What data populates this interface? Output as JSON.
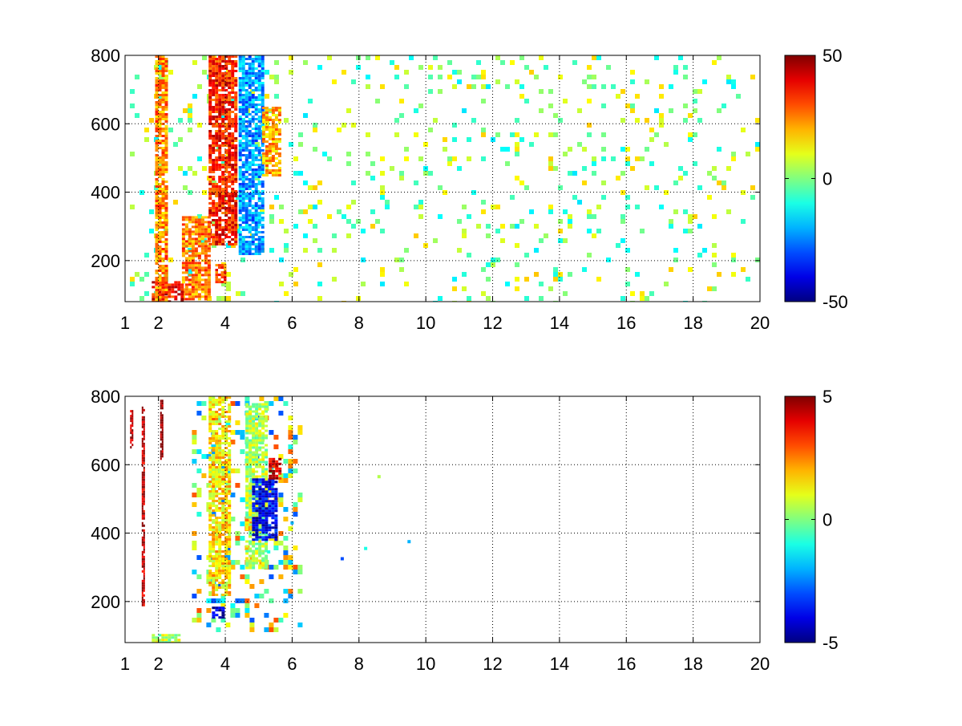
{
  "chart_data": [
    {
      "type": "heatmap",
      "title": "",
      "xlabel": "",
      "ylabel": "",
      "xlim": [
        1,
        20
      ],
      "ylim": [
        80,
        800
      ],
      "xticks": [
        1,
        2,
        4,
        6,
        8,
        10,
        12,
        14,
        16,
        18,
        20
      ],
      "yticks": [
        200,
        400,
        600,
        800
      ],
      "xtick_labels": [
        "1",
        "2",
        "4",
        "6",
        "8",
        "10",
        "12",
        "14",
        "16",
        "18",
        "20"
      ],
      "ytick_labels": [
        "200",
        "400",
        "600",
        "800"
      ],
      "grid": true,
      "colormap": "jet",
      "clim": [
        -50,
        50
      ],
      "colorbar_ticks": [
        50,
        0,
        -50
      ],
      "colorbar_labels": [
        "50",
        "0",
        "-50"
      ],
      "features": [
        {
          "x_range": [
            3.5,
            4.3
          ],
          "y_range": [
            250,
            800
          ],
          "value": 35
        },
        {
          "x_range": [
            2.7,
            3.5
          ],
          "y_range": [
            90,
            330
          ],
          "value": 25
        },
        {
          "x_range": [
            1.8,
            2.7
          ],
          "y_range": [
            80,
            140
          ],
          "value": 38
        },
        {
          "x_range": [
            4.4,
            5.1
          ],
          "y_range": [
            220,
            800
          ],
          "value": -22
        },
        {
          "x_range": [
            5.1,
            5.6
          ],
          "y_range": [
            450,
            650
          ],
          "value": 20
        },
        {
          "x_range": [
            1.9,
            2.2
          ],
          "y_range": [
            80,
            800
          ],
          "value": 25
        },
        {
          "x_range": [
            3.7,
            3.95
          ],
          "y_range": [
            140,
            190
          ],
          "value": 30
        }
      ],
      "background_noise": {
        "x_range": [
          1,
          20
        ],
        "y_range": [
          80,
          800
        ],
        "value_range": [
          -15,
          18
        ],
        "density": 0.09
      }
    },
    {
      "type": "heatmap",
      "title": "",
      "xlabel": "",
      "ylabel": "",
      "xlim": [
        1,
        20
      ],
      "ylim": [
        80,
        800
      ],
      "xticks": [
        1,
        2,
        4,
        6,
        8,
        10,
        12,
        14,
        16,
        18,
        20
      ],
      "yticks": [
        200,
        400,
        600,
        800
      ],
      "xtick_labels": [
        "1",
        "2",
        "4",
        "6",
        "8",
        "10",
        "12",
        "14",
        "16",
        "18",
        "20"
      ],
      "ytick_labels": [
        "200",
        "400",
        "600",
        "800"
      ],
      "grid": true,
      "colormap": "jet",
      "clim": [
        -5,
        5
      ],
      "colorbar_ticks": [
        5,
        0,
        -5
      ],
      "colorbar_labels": [
        "5",
        "0",
        "-5"
      ],
      "features": [
        {
          "x_range": [
            3.5,
            4.1
          ],
          "y_range": [
            220,
            800
          ],
          "value": 1.5
        },
        {
          "x_range": [
            4.6,
            5.2
          ],
          "y_range": [
            300,
            780
          ],
          "value": 0.5
        },
        {
          "x_range": [
            4.8,
            5.5
          ],
          "y_range": [
            380,
            560
          ],
          "value": -3.8
        },
        {
          "x_range": [
            5.3,
            5.6
          ],
          "y_range": [
            560,
            620
          ],
          "value": 4.2
        },
        {
          "x_range": [
            3.6,
            3.9
          ],
          "y_range": [
            150,
            185
          ],
          "value": -4.5
        },
        {
          "x_range": [
            1.8,
            2.6
          ],
          "y_range": [
            80,
            105
          ],
          "value": 0.5
        },
        {
          "x_range": [
            2.05,
            2.1
          ],
          "y_range": [
            620,
            790
          ],
          "value": 5
        },
        {
          "x_range": [
            1.5,
            1.55
          ],
          "y_range": [
            190,
            770
          ],
          "value": 4.5
        },
        {
          "x_range": [
            1.15,
            1.2
          ],
          "y_range": [
            650,
            760
          ],
          "value": 4.5
        }
      ],
      "background_noise": {
        "x_range": [
          3.0,
          6.2
        ],
        "y_range": [
          120,
          800
        ],
        "value_range": [
          -3,
          3
        ],
        "density": 0.25
      },
      "scattered_points": [
        {
          "x": 7.5,
          "y": 325,
          "value": -3
        },
        {
          "x": 8.6,
          "y": 565,
          "value": 0.5
        },
        {
          "x": 9.5,
          "y": 375,
          "value": -2
        },
        {
          "x": 8.2,
          "y": 355,
          "value": -1
        },
        {
          "x": 6.0,
          "y": 430,
          "value": -2
        },
        {
          "x": 5.3,
          "y": 345,
          "value": -1
        }
      ]
    }
  ]
}
